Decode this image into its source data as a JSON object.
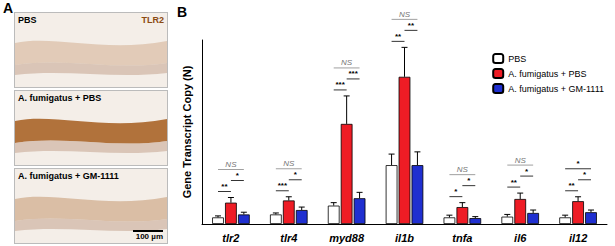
{
  "panel_a": {
    "label": "A",
    "stain": "TLR2",
    "scale_bar": "100 µm",
    "panels": [
      "PBS",
      "A. fumigatus + PBS",
      "A. fumigatus + GM-1111"
    ]
  },
  "chart_data": {
    "type": "bar",
    "title": "B",
    "y_label": "Gene Transcript Copy (N)",
    "categories": [
      "tlr2",
      "tlr4",
      "myd88",
      "il1b",
      "tnfa",
      "il6",
      "il12"
    ],
    "series": [
      {
        "name": "PBS",
        "color": "#ffffff",
        "values": [
          9,
          13,
          25,
          80,
          9,
          10,
          9
        ],
        "errors": [
          2,
          2,
          4,
          15,
          3,
          3,
          3
        ]
      },
      {
        "name": "A. fumigatus + PBS",
        "color": "#ee1c25",
        "values": [
          29,
          32,
          136,
          200,
          23,
          34,
          31
        ],
        "errors": [
          7,
          5,
          38,
          40,
          6,
          8,
          6
        ]
      },
      {
        "name": "A. fumigatus + GM-1111",
        "color": "#1f2fd0",
        "values": [
          13,
          19,
          35,
          80,
          8,
          15,
          16
        ],
        "errors": [
          3,
          4,
          8,
          18,
          2,
          4,
          3
        ]
      }
    ],
    "significance": [
      [
        {
          "pair": [
            0,
            1
          ],
          "label": "**"
        },
        {
          "pair": [
            1,
            2
          ],
          "label": "*"
        },
        {
          "pair": [
            0,
            2
          ],
          "label": "NS"
        }
      ],
      [
        {
          "pair": [
            0,
            1
          ],
          "label": "***"
        },
        {
          "pair": [
            1,
            2
          ],
          "label": "*"
        },
        {
          "pair": [
            0,
            2
          ],
          "label": "NS"
        }
      ],
      [
        {
          "pair": [
            0,
            1
          ],
          "label": "***"
        },
        {
          "pair": [
            1,
            2
          ],
          "label": "***"
        },
        {
          "pair": [
            0,
            2
          ],
          "label": "NS"
        }
      ],
      [
        {
          "pair": [
            0,
            1
          ],
          "label": "**"
        },
        {
          "pair": [
            1,
            2
          ],
          "label": "**"
        },
        {
          "pair": [
            0,
            2
          ],
          "label": "NS"
        }
      ],
      [
        {
          "pair": [
            0,
            1
          ],
          "label": "*"
        },
        {
          "pair": [
            1,
            2
          ],
          "label": "*"
        },
        {
          "pair": [
            0,
            2
          ],
          "label": "NS"
        }
      ],
      [
        {
          "pair": [
            0,
            1
          ],
          "label": "**"
        },
        {
          "pair": [
            1,
            2
          ],
          "label": "*"
        },
        {
          "pair": [
            0,
            2
          ],
          "label": "NS"
        }
      ],
      [
        {
          "pair": [
            0,
            1
          ],
          "label": "**"
        },
        {
          "pair": [
            1,
            2
          ],
          "label": "*"
        },
        {
          "pair": [
            0,
            2
          ],
          "label": "*"
        }
      ]
    ],
    "ylim": [
      0,
      250
    ],
    "yticks": [],
    "tick_labels": "x",
    "legend": "upper right",
    "grid": false
  }
}
